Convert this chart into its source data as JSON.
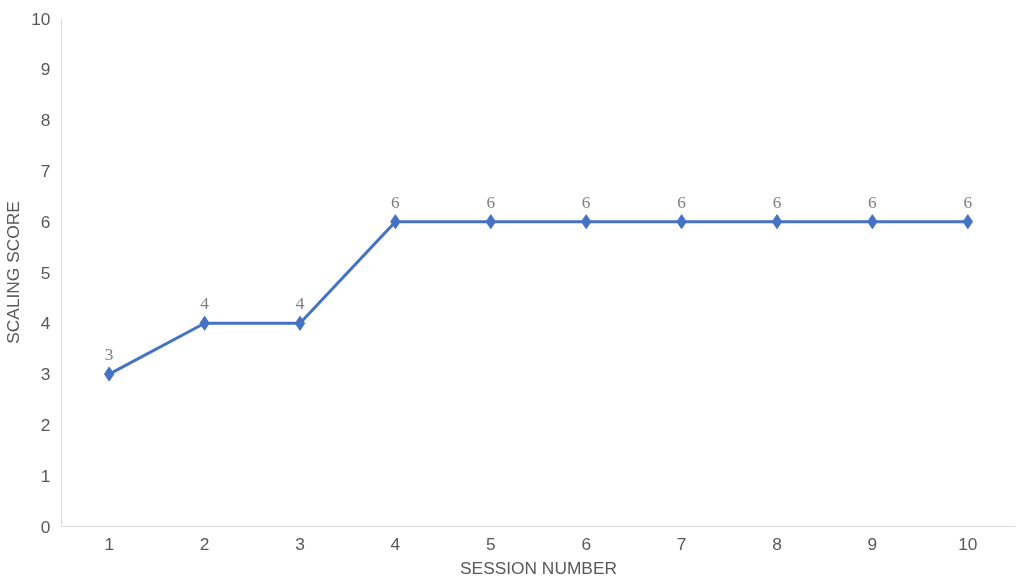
{
  "chart_data": {
    "type": "line",
    "xlabel": "SESSION NUMBER",
    "ylabel": "SCALING SCORE",
    "categories": [
      "1",
      "2",
      "3",
      "4",
      "5",
      "6",
      "7",
      "8",
      "9",
      "10"
    ],
    "series": [
      {
        "color": "#4472c4",
        "values": [
          3,
          4,
          4,
          6,
          6,
          6,
          6,
          6,
          6,
          6
        ]
      }
    ],
    "ylim": [
      0,
      10
    ],
    "yticks": [
      0,
      1,
      2,
      3,
      4,
      5,
      6,
      7,
      8,
      9,
      10
    ],
    "grid": false,
    "marker": "diamond",
    "line_style": "solid",
    "data_labels": true
  }
}
